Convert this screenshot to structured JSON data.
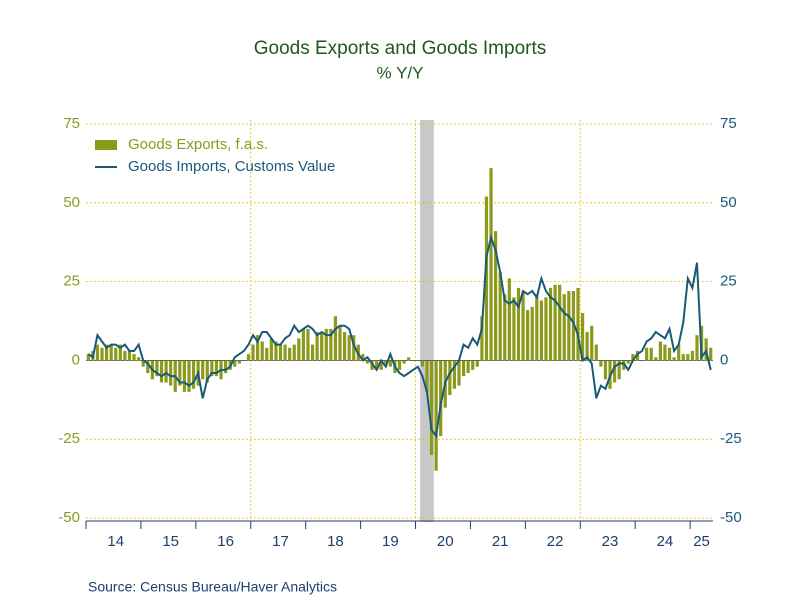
{
  "chart_data": {
    "type": "bar-line",
    "title": "Goods Exports and Goods Imports",
    "subtitle": "% Y/Y",
    "source": "Source:  Census Bureau/Haver Analytics",
    "categories": [
      null,
      null,
      null,
      null,
      null,
      null,
      "14",
      null,
      null,
      null,
      null,
      null,
      null,
      null,
      null,
      null,
      null,
      null,
      "15",
      null,
      null,
      null,
      null,
      null,
      null,
      null,
      null,
      null,
      null,
      null,
      "16",
      null,
      null,
      null,
      null,
      null,
      null,
      null,
      null,
      null,
      null,
      null,
      "17",
      null,
      null,
      null,
      null,
      null,
      null,
      null,
      null,
      null,
      null,
      null,
      "18",
      null,
      null,
      null,
      null,
      null,
      null,
      null,
      null,
      null,
      null,
      null,
      "19",
      null,
      null,
      null,
      null,
      null,
      null,
      null,
      null,
      null,
      null,
      null,
      "20",
      null,
      null,
      null,
      null,
      null,
      null,
      null,
      null,
      null,
      null,
      null,
      "21",
      null,
      null,
      null,
      null,
      null,
      null,
      null,
      null,
      null,
      null,
      null,
      "22",
      null,
      null,
      null,
      null,
      null,
      null,
      null,
      null,
      null,
      null,
      null,
      "23",
      null,
      null,
      null,
      null,
      null,
      null,
      null,
      null,
      null,
      null,
      null,
      "24",
      null,
      null,
      null,
      null,
      null,
      null,
      null,
      "25",
      null,
      null
    ],
    "shaded_range": [
      73,
      75
    ],
    "series": [
      {
        "name": "Goods Exports, f.a.s.",
        "kind": "bar",
        "color": "#8c9a1c",
        "axis": "y",
        "values": [
          2,
          3,
          5,
          4,
          5,
          5,
          4,
          5,
          3,
          3,
          2,
          1,
          -2,
          -4,
          -6,
          -5,
          -7,
          -7,
          -8,
          -10,
          -8,
          -10,
          -10,
          -9,
          -8,
          -6,
          -7,
          -5,
          -5,
          -6,
          -4,
          -3,
          -2,
          -1,
          0,
          2,
          5,
          8,
          6,
          4,
          7,
          6,
          5,
          5,
          4,
          5,
          7,
          10,
          10,
          5,
          9,
          9,
          10,
          10,
          14,
          11,
          9,
          8,
          8,
          5,
          2,
          -1,
          -3,
          -3,
          -3,
          -1,
          -2,
          -4,
          -3,
          -1,
          1,
          0,
          0,
          -2,
          -10,
          -30,
          -35,
          -24,
          -15,
          -11,
          -9,
          -8,
          -5,
          -4,
          -3,
          -2,
          14,
          52,
          61,
          41,
          28,
          21,
          26,
          20,
          23,
          22,
          16,
          17,
          21,
          19,
          20,
          23,
          24,
          24,
          21,
          22,
          22,
          23,
          15,
          9,
          11,
          5,
          -2,
          -6,
          -9,
          -7,
          -6,
          -3,
          -1,
          2,
          3,
          0,
          4,
          4,
          1,
          6,
          5,
          4,
          1,
          5,
          2,
          2,
          3,
          8,
          11,
          7,
          4
        ]
      },
      {
        "name": "Goods Imports, Customs Value",
        "kind": "line",
        "color": "#1a5a78",
        "axis": "y2",
        "values": [
          2,
          1,
          8,
          6,
          4,
          5,
          5,
          4,
          5,
          3,
          3,
          5,
          0,
          -1,
          -3,
          -4,
          -5,
          -4,
          -5,
          -5,
          -7,
          -7,
          -8,
          -7,
          -4,
          -12,
          -6,
          -4,
          -4,
          -3,
          -3,
          -2,
          1,
          2,
          3,
          5,
          8,
          6,
          9,
          9,
          7,
          5,
          5,
          7,
          8,
          11,
          9,
          10,
          11,
          10,
          8,
          9,
          8,
          8,
          10,
          11,
          11,
          10,
          5,
          2,
          0,
          1,
          -1,
          -3,
          0,
          -2,
          2,
          -2,
          -4,
          -5,
          -4,
          -3,
          -2,
          -5,
          -10,
          -22,
          -24,
          -14,
          -7,
          -4,
          -2,
          0,
          5,
          4,
          7,
          5,
          10,
          33,
          39,
          35,
          28,
          19,
          18,
          19,
          17,
          22,
          21,
          22,
          20,
          26,
          22,
          20,
          19,
          17,
          15,
          14,
          12,
          8,
          0,
          1,
          -1,
          -12,
          -8,
          -9,
          -5,
          -2,
          -1,
          -1,
          -3,
          0,
          2,
          3,
          6,
          7,
          9,
          8,
          7,
          10,
          3,
          5,
          12,
          26,
          23,
          31,
          1,
          3,
          -3
        ]
      }
    ],
    "ylim": [
      -50,
      75
    ],
    "yticks": [
      -50,
      -25,
      0,
      25,
      50,
      75
    ],
    "y2lim": [
      -50,
      75
    ],
    "y2ticks": [
      -50,
      -25,
      0,
      25,
      50,
      75
    ],
    "grid": true,
    "legend": "top-left"
  }
}
